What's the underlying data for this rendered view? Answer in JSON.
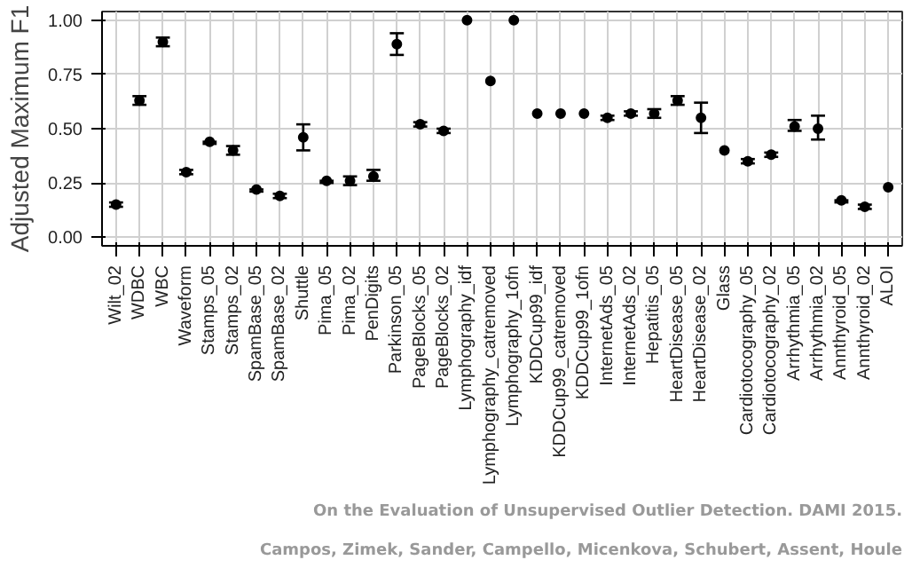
{
  "chart_data": {
    "type": "scatter",
    "ylabel": "Adjusted Maximum F1",
    "categories": [
      "Wilt_02",
      "WDBC",
      "WBC",
      "Waveform",
      "Stamps_05",
      "Stamps_02",
      "SpamBase_05",
      "SpamBase_02",
      "Shuttle",
      "Pima_05",
      "Pima_02",
      "PenDigits",
      "Parkinson_05",
      "PageBlocks_05",
      "PageBlocks_02",
      "Lymphography_idf",
      "Lymphography_catremoved",
      "Lymphography_1ofn",
      "KDDCup99_idf",
      "KDDCup99_catremoved",
      "KDDCup99_1ofn",
      "InternetAds_05",
      "InternetAds_02",
      "Hepatitis_05",
      "HeartDisease_05",
      "HeartDisease_02",
      "Glass",
      "Cardiotocography_05",
      "Cardiotocography_02",
      "Arrhythmia_05",
      "Arrhythmia_02",
      "Annthyroid_05",
      "Annthyroid_02",
      "ALOI"
    ],
    "series": [
      {
        "color": "#000000",
        "values": [
          0.15,
          0.63,
          0.9,
          0.3,
          0.44,
          0.4,
          0.22,
          0.19,
          0.46,
          0.26,
          0.26,
          0.28,
          0.89,
          0.52,
          0.49,
          1.0,
          0.72,
          1.0,
          0.57,
          0.57,
          0.57,
          0.55,
          0.57,
          0.57,
          0.63,
          0.55,
          0.4,
          0.35,
          0.38,
          0.51,
          0.5,
          0.17,
          0.14,
          0.23
        ],
        "errors": [
          [
            0.14,
            0.16
          ],
          [
            0.61,
            0.65
          ],
          [
            0.88,
            0.92
          ],
          [
            0.29,
            0.31
          ],
          [
            0.43,
            0.44
          ],
          [
            0.38,
            0.42
          ],
          [
            0.21,
            0.22
          ],
          [
            0.18,
            0.2
          ],
          [
            0.4,
            0.52
          ],
          [
            0.25,
            0.26
          ],
          [
            0.24,
            0.28
          ],
          [
            0.26,
            0.31
          ],
          [
            0.84,
            0.94
          ],
          [
            0.51,
            0.53
          ],
          [
            0.48,
            0.5
          ],
          null,
          null,
          null,
          null,
          null,
          null,
          [
            0.54,
            0.56
          ],
          [
            0.56,
            0.58
          ],
          [
            0.55,
            0.59
          ],
          [
            0.61,
            0.65
          ],
          [
            0.48,
            0.62
          ],
          null,
          [
            0.34,
            0.36
          ],
          [
            0.37,
            0.39
          ],
          [
            0.49,
            0.54
          ],
          [
            0.45,
            0.56
          ],
          [
            0.16,
            0.17
          ],
          [
            0.13,
            0.15
          ],
          null
        ]
      }
    ],
    "ylim": [
      -0.04,
      1.04
    ],
    "yticks": [
      {
        "value": 0,
        "label": "0.00"
      },
      {
        "value": 0.25,
        "label": "0.25"
      },
      {
        "value": 0.5,
        "label": "0.50"
      },
      {
        "value": 0.75,
        "label": "0.75"
      },
      {
        "value": 1,
        "label": "1.00"
      }
    ],
    "grid": true,
    "marker": "circle",
    "annotations": [
      "On the Evaluation of Unsupervised Outlier Detection. DAMI 2015.",
      "Campos, Zimek, Sander, Campello, Micenkova, Schubert, Assent, Houle"
    ]
  }
}
